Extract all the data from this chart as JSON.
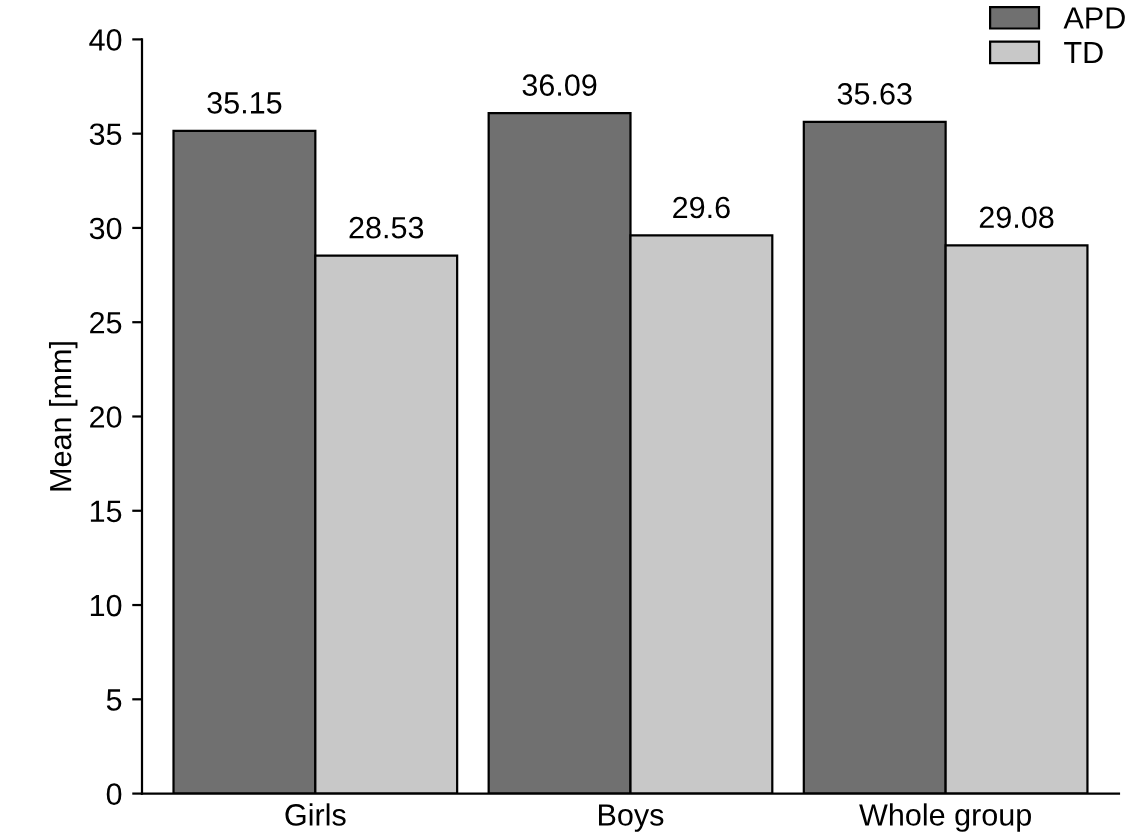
{
  "chart_data": {
    "type": "bar",
    "ylabel": "Mean [mm]",
    "categories": [
      "Girls",
      "Boys",
      "Whole group"
    ],
    "series": [
      {
        "name": "APD",
        "color": "#707070",
        "values": [
          35.15,
          36.09,
          35.63
        ]
      },
      {
        "name": "TD",
        "color": "#c8c8c8",
        "values": [
          28.53,
          29.6,
          29.08
        ]
      }
    ],
    "ylim": [
      0,
      40
    ],
    "yticks": [
      0,
      5,
      10,
      15,
      20,
      25,
      30,
      35,
      40
    ],
    "data_labels": true,
    "legend": "top right",
    "grid": false
  }
}
